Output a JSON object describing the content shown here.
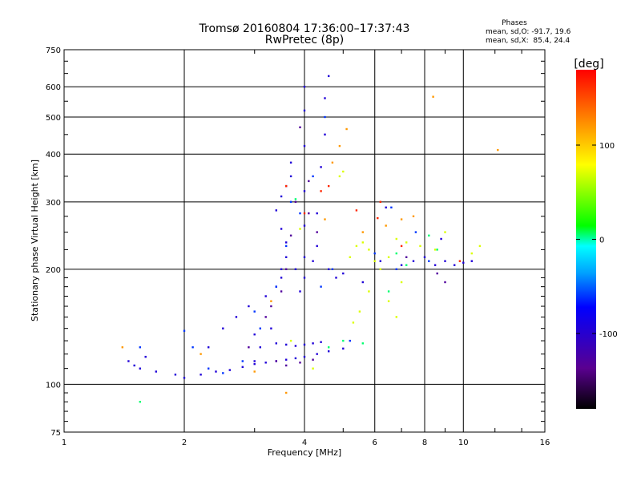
{
  "chart_data": {
    "type": "scatter",
    "title": "Tromsø 20160804 17:36:00–17:37:43",
    "subtitle": "RwPretec (8p)",
    "xlabel": "Frequency [MHz]",
    "ylabel": "Stationary phase Virtual Height [km]",
    "x_scale": "log2",
    "y_scale": "log",
    "xlim": [
      1,
      16
    ],
    "ylim": [
      75,
      750
    ],
    "x_ticks": [
      1,
      2,
      4,
      6,
      8,
      10,
      16
    ],
    "y_ticks": [
      75,
      100,
      200,
      300,
      400,
      500,
      600,
      750
    ],
    "x_minor_ticks": [
      3,
      5,
      7,
      9,
      12,
      14
    ],
    "y_minor_ticks": [
      80,
      85,
      90,
      95,
      110,
      120,
      130,
      140,
      150,
      160,
      170,
      180,
      190,
      225,
      250,
      275,
      350,
      450,
      550,
      650,
      700
    ],
    "grid": true,
    "stats": {
      "heading": "Phases",
      "line_o": "mean, sd,O: -91.7, 19.6",
      "line_x": "mean, sd,X:  85.4, 24.4"
    },
    "colorbar": {
      "label": "[deg]",
      "range": [
        -180,
        180
      ],
      "ticks": [
        100,
        0,
        -100
      ],
      "colormap": "rainbow"
    },
    "series": [
      {
        "color_value": -95,
        "points": [
          [
            1.45,
            115
          ],
          [
            1.5,
            112
          ],
          [
            1.55,
            110
          ],
          [
            1.6,
            118
          ],
          [
            1.7,
            108
          ],
          [
            1.9,
            106
          ],
          [
            2.0,
            104
          ],
          [
            2.2,
            106
          ],
          [
            2.4,
            108
          ],
          [
            2.6,
            109
          ],
          [
            2.8,
            111
          ],
          [
            3.0,
            113
          ],
          [
            3.2,
            114
          ],
          [
            3.4,
            115
          ],
          [
            3.6,
            116
          ],
          [
            3.8,
            117
          ],
          [
            4.0,
            118
          ],
          [
            4.3,
            120
          ],
          [
            4.6,
            122
          ],
          [
            5.0,
            124
          ],
          [
            3.4,
            128
          ],
          [
            3.6,
            127
          ],
          [
            3.8,
            126
          ],
          [
            4.0,
            127
          ],
          [
            4.2,
            128
          ],
          [
            4.4,
            129
          ],
          [
            2.5,
            140
          ],
          [
            2.7,
            150
          ],
          [
            2.9,
            160
          ],
          [
            3.0,
            135
          ],
          [
            3.2,
            170
          ],
          [
            3.4,
            180
          ],
          [
            3.5,
            190
          ],
          [
            3.5,
            200
          ],
          [
            3.6,
            215
          ],
          [
            3.6,
            235
          ],
          [
            3.5,
            255
          ],
          [
            3.4,
            285
          ],
          [
            3.5,
            310
          ],
          [
            3.6,
            330
          ],
          [
            3.7,
            350
          ],
          [
            3.7,
            380
          ],
          [
            3.8,
            200
          ],
          [
            3.9,
            175
          ],
          [
            4.0,
            190
          ],
          [
            4.0,
            215
          ],
          [
            4.0,
            260
          ],
          [
            4.0,
            320
          ],
          [
            4.0,
            420
          ],
          [
            4.0,
            520
          ],
          [
            4.0,
            600
          ],
          [
            4.2,
            210
          ],
          [
            4.3,
            230
          ],
          [
            4.3,
            280
          ],
          [
            4.4,
            370
          ],
          [
            4.5,
            450
          ],
          [
            4.5,
            560
          ],
          [
            4.6,
            640
          ],
          [
            4.6,
            200
          ],
          [
            4.8,
            190
          ],
          [
            5.0,
            195
          ],
          [
            5.6,
            185
          ],
          [
            6.2,
            210
          ],
          [
            6.4,
            290
          ],
          [
            7.0,
            205
          ],
          [
            7.5,
            210
          ],
          [
            8.0,
            215
          ],
          [
            8.5,
            205
          ],
          [
            9.0,
            210
          ],
          [
            9.5,
            205
          ],
          [
            10.0,
            208
          ],
          [
            10.5,
            210
          ],
          [
            8.8,
            240
          ],
          [
            3.0,
            115
          ],
          [
            3.3,
            140
          ],
          [
            3.1,
            125
          ],
          [
            2.3,
            125
          ]
        ]
      },
      {
        "color_value": -130,
        "points": [
          [
            3.6,
            112
          ],
          [
            3.9,
            114
          ],
          [
            4.2,
            116
          ],
          [
            3.3,
            160
          ],
          [
            3.5,
            175
          ],
          [
            3.7,
            245
          ],
          [
            3.8,
            300
          ],
          [
            3.9,
            470
          ],
          [
            4.1,
            340
          ],
          [
            4.3,
            250
          ],
          [
            2.9,
            125
          ],
          [
            3.2,
            150
          ],
          [
            8.6,
            195
          ],
          [
            9.0,
            185
          ],
          [
            7.2,
            215
          ],
          [
            3.6,
            200
          ],
          [
            4.1,
            280
          ],
          [
            3.4,
            115
          ]
        ]
      },
      {
        "color_value": -60,
        "points": [
          [
            1.55,
            125
          ],
          [
            2.1,
            125
          ],
          [
            2.3,
            110
          ],
          [
            2.5,
            107
          ],
          [
            2.8,
            115
          ],
          [
            3.1,
            140
          ],
          [
            3.4,
            180
          ],
          [
            3.6,
            230
          ],
          [
            3.9,
            280
          ],
          [
            4.2,
            350
          ],
          [
            4.4,
            180
          ],
          [
            4.7,
            200
          ],
          [
            5.2,
            130
          ],
          [
            6.0,
            220
          ],
          [
            6.6,
            290
          ],
          [
            6.8,
            200
          ],
          [
            7.6,
            250
          ],
          [
            8.2,
            210
          ],
          [
            2.0,
            138
          ],
          [
            3.0,
            155
          ],
          [
            3.7,
            300
          ],
          [
            4.5,
            500
          ]
        ]
      },
      {
        "color_value": 5,
        "points": [
          [
            4.6,
            125
          ],
          [
            5.0,
            130
          ],
          [
            5.6,
            128
          ],
          [
            6.8,
            220
          ],
          [
            7.2,
            205
          ],
          [
            8.2,
            245
          ],
          [
            8.6,
            225
          ],
          [
            6.5,
            175
          ],
          [
            3.8,
            305
          ],
          [
            1.55,
            90
          ]
        ]
      },
      {
        "color_value": 70,
        "points": [
          [
            5.2,
            215
          ],
          [
            5.4,
            230
          ],
          [
            5.6,
            235
          ],
          [
            5.8,
            225
          ],
          [
            6.0,
            210
          ],
          [
            6.2,
            200
          ],
          [
            6.5,
            215
          ],
          [
            6.8,
            240
          ],
          [
            7.2,
            235
          ],
          [
            7.8,
            230
          ],
          [
            8.5,
            225
          ],
          [
            9.0,
            250
          ],
          [
            10.5,
            220
          ],
          [
            11.0,
            230
          ],
          [
            5.3,
            145
          ],
          [
            5.5,
            155
          ],
          [
            5.8,
            175
          ],
          [
            6.5,
            165
          ],
          [
            6.8,
            150
          ],
          [
            7.0,
            185
          ],
          [
            3.9,
            255
          ],
          [
            4.2,
            110
          ],
          [
            3.7,
            130
          ],
          [
            4.9,
            350
          ],
          [
            5.0,
            360
          ]
        ]
      },
      {
        "color_value": 120,
        "points": [
          [
            1.4,
            125
          ],
          [
            2.2,
            120
          ],
          [
            3.6,
            95
          ],
          [
            3.3,
            165
          ],
          [
            4.5,
            270
          ],
          [
            4.9,
            420
          ],
          [
            5.1,
            465
          ],
          [
            5.6,
            250
          ],
          [
            6.4,
            260
          ],
          [
            7.0,
            270
          ],
          [
            7.5,
            275
          ],
          [
            4.7,
            380
          ],
          [
            8.4,
            565
          ],
          [
            12.2,
            410
          ],
          [
            3.0,
            108
          ]
        ]
      },
      {
        "color_value": 165,
        "points": [
          [
            4.4,
            320
          ],
          [
            4.6,
            330
          ],
          [
            6.2,
            300
          ],
          [
            7.0,
            230
          ],
          [
            3.6,
            330
          ],
          [
            4.0,
            280
          ],
          [
            9.8,
            210
          ],
          [
            5.4,
            285
          ],
          [
            6.1,
            272
          ]
        ]
      }
    ]
  }
}
